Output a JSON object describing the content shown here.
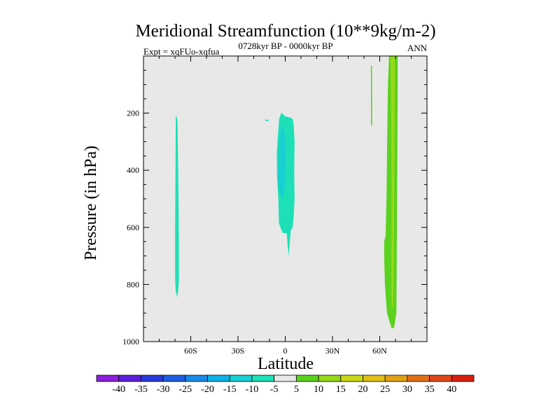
{
  "chart_data": {
    "type": "heatmap",
    "title": "Meridional Streamfunction (10**9kg/m-2)",
    "subtitle_left": "Expt = xqFUo-xqfua",
    "subtitle_center": "0728kyr BP - 0000kyr BP",
    "subtitle_right": "ANN",
    "xlabel": "Latitude",
    "ylabel": "Pressure (in hPa)",
    "xlim": [
      -90,
      90
    ],
    "ylim": [
      1000,
      0
    ],
    "x_ticks": [
      {
        "value": -60,
        "label": "60S"
      },
      {
        "value": -30,
        "label": "30S"
      },
      {
        "value": 0,
        "label": "0"
      },
      {
        "value": 30,
        "label": "30N"
      },
      {
        "value": 60,
        "label": "60N"
      }
    ],
    "y_ticks": [
      {
        "value": 200,
        "label": "200"
      },
      {
        "value": 400,
        "label": "400"
      },
      {
        "value": 600,
        "label": "600"
      },
      {
        "value": 800,
        "label": "800"
      },
      {
        "value": 1000,
        "label": "1000"
      }
    ],
    "background_color": "#e8e8e8",
    "colorbar": {
      "labels": [
        "-40",
        "-35",
        "-30",
        "-25",
        "-20",
        "-15",
        "-10",
        "-5",
        "5",
        "10",
        "15",
        "20",
        "25",
        "30",
        "35",
        "40"
      ],
      "colors": [
        "#8a1fdc",
        "#5a1fd8",
        "#2a3ad8",
        "#1e5ee0",
        "#1a8ae6",
        "#0fb0e4",
        "#18cfd2",
        "#1ee0b6",
        "#e8e8e8",
        "#5ad21e",
        "#98d818",
        "#c8d818",
        "#e0c018",
        "#e0a018",
        "#e07018",
        "#e04818",
        "#d82010"
      ]
    },
    "features": [
      {
        "name": "southern-negative-band",
        "color": "#1ee0b6",
        "polygon": [
          [
            -69.3,
            205
          ],
          [
            -68.4,
            230
          ],
          [
            -67.9,
            420
          ],
          [
            -67.6,
            620
          ],
          [
            -67.5,
            780
          ],
          [
            -67.9,
            820
          ],
          [
            -68.7,
            845
          ],
          [
            -69.6,
            820
          ],
          [
            -69.9,
            780
          ],
          [
            -69.9,
            600
          ],
          [
            -69.7,
            400
          ],
          [
            -69.5,
            220
          ]
        ]
      },
      {
        "name": "equatorial-negative-cell",
        "color": "#1ee0b6",
        "polygon": [
          [
            -2.4,
            198
          ],
          [
            -0.4,
            210
          ],
          [
            2.8,
            215
          ],
          [
            4.7,
            220
          ],
          [
            5.4,
            240
          ],
          [
            5.9,
            300
          ],
          [
            5.7,
            400
          ],
          [
            5.9,
            500
          ],
          [
            5.4,
            560
          ],
          [
            4.7,
            600
          ],
          [
            3.5,
            610
          ],
          [
            3.1,
            640
          ],
          [
            2.5,
            680
          ],
          [
            2.2,
            700
          ],
          [
            1.6,
            670
          ],
          [
            0.9,
            620
          ],
          [
            -1.5,
            620
          ],
          [
            -2.7,
            605
          ],
          [
            -4.0,
            585
          ],
          [
            -4.4,
            500
          ],
          [
            -5.2,
            420
          ],
          [
            -5.4,
            340
          ],
          [
            -4.4,
            260
          ],
          [
            -3.9,
            220
          ]
        ]
      },
      {
        "name": "equatorial-negative-core",
        "color": "#18cfd2",
        "polygon": [
          [
            -2.2,
            240
          ],
          [
            -0.7,
            260
          ],
          [
            0.4,
            310
          ],
          [
            0.3,
            390
          ],
          [
            -0.4,
            460
          ],
          [
            -1.5,
            500
          ],
          [
            -3.6,
            480
          ],
          [
            -4.6,
            420
          ],
          [
            -4.0,
            330
          ],
          [
            -3.3,
            270
          ]
        ]
      },
      {
        "name": "small-negative-speck",
        "color": "#1ee0b6",
        "polygon": [
          [
            -12.5,
            222
          ],
          [
            -10.5,
            224
          ],
          [
            -10.7,
            228
          ],
          [
            -12.7,
            227
          ]
        ]
      },
      {
        "name": "northern-thin-positive-band",
        "color": "#5ad21e",
        "polygon": [
          [
            54.4,
            35
          ],
          [
            55.1,
            35
          ],
          [
            55.2,
            240
          ],
          [
            54.8,
            245
          ],
          [
            54.5,
            240
          ]
        ]
      },
      {
        "name": "northern-positive-cell",
        "color": "#5ad21e",
        "polygon": [
          [
            65.9,
            0
          ],
          [
            71.4,
            0
          ],
          [
            71.4,
            100
          ],
          [
            71.2,
            300
          ],
          [
            71.0,
            500
          ],
          [
            70.8,
            700
          ],
          [
            70.6,
            900
          ],
          [
            69.1,
            950
          ],
          [
            67.6,
            955
          ],
          [
            64.6,
            900
          ],
          [
            63.3,
            800
          ],
          [
            62.8,
            700
          ],
          [
            62.8,
            650
          ],
          [
            63.7,
            630
          ],
          [
            64.3,
            500
          ],
          [
            64.7,
            300
          ],
          [
            65.2,
            100
          ]
        ]
      },
      {
        "name": "northern-positive-core",
        "color": "#98d818",
        "polygon": [
          [
            66.8,
            0
          ],
          [
            69.6,
            0
          ],
          [
            69.5,
            200
          ],
          [
            69.3,
            400
          ],
          [
            69.1,
            600
          ],
          [
            68.9,
            780
          ],
          [
            68.4,
            880
          ],
          [
            67.6,
            885
          ],
          [
            67.3,
            780
          ],
          [
            67.5,
            600
          ],
          [
            67.4,
            400
          ],
          [
            67.2,
            200
          ]
        ]
      }
    ]
  }
}
